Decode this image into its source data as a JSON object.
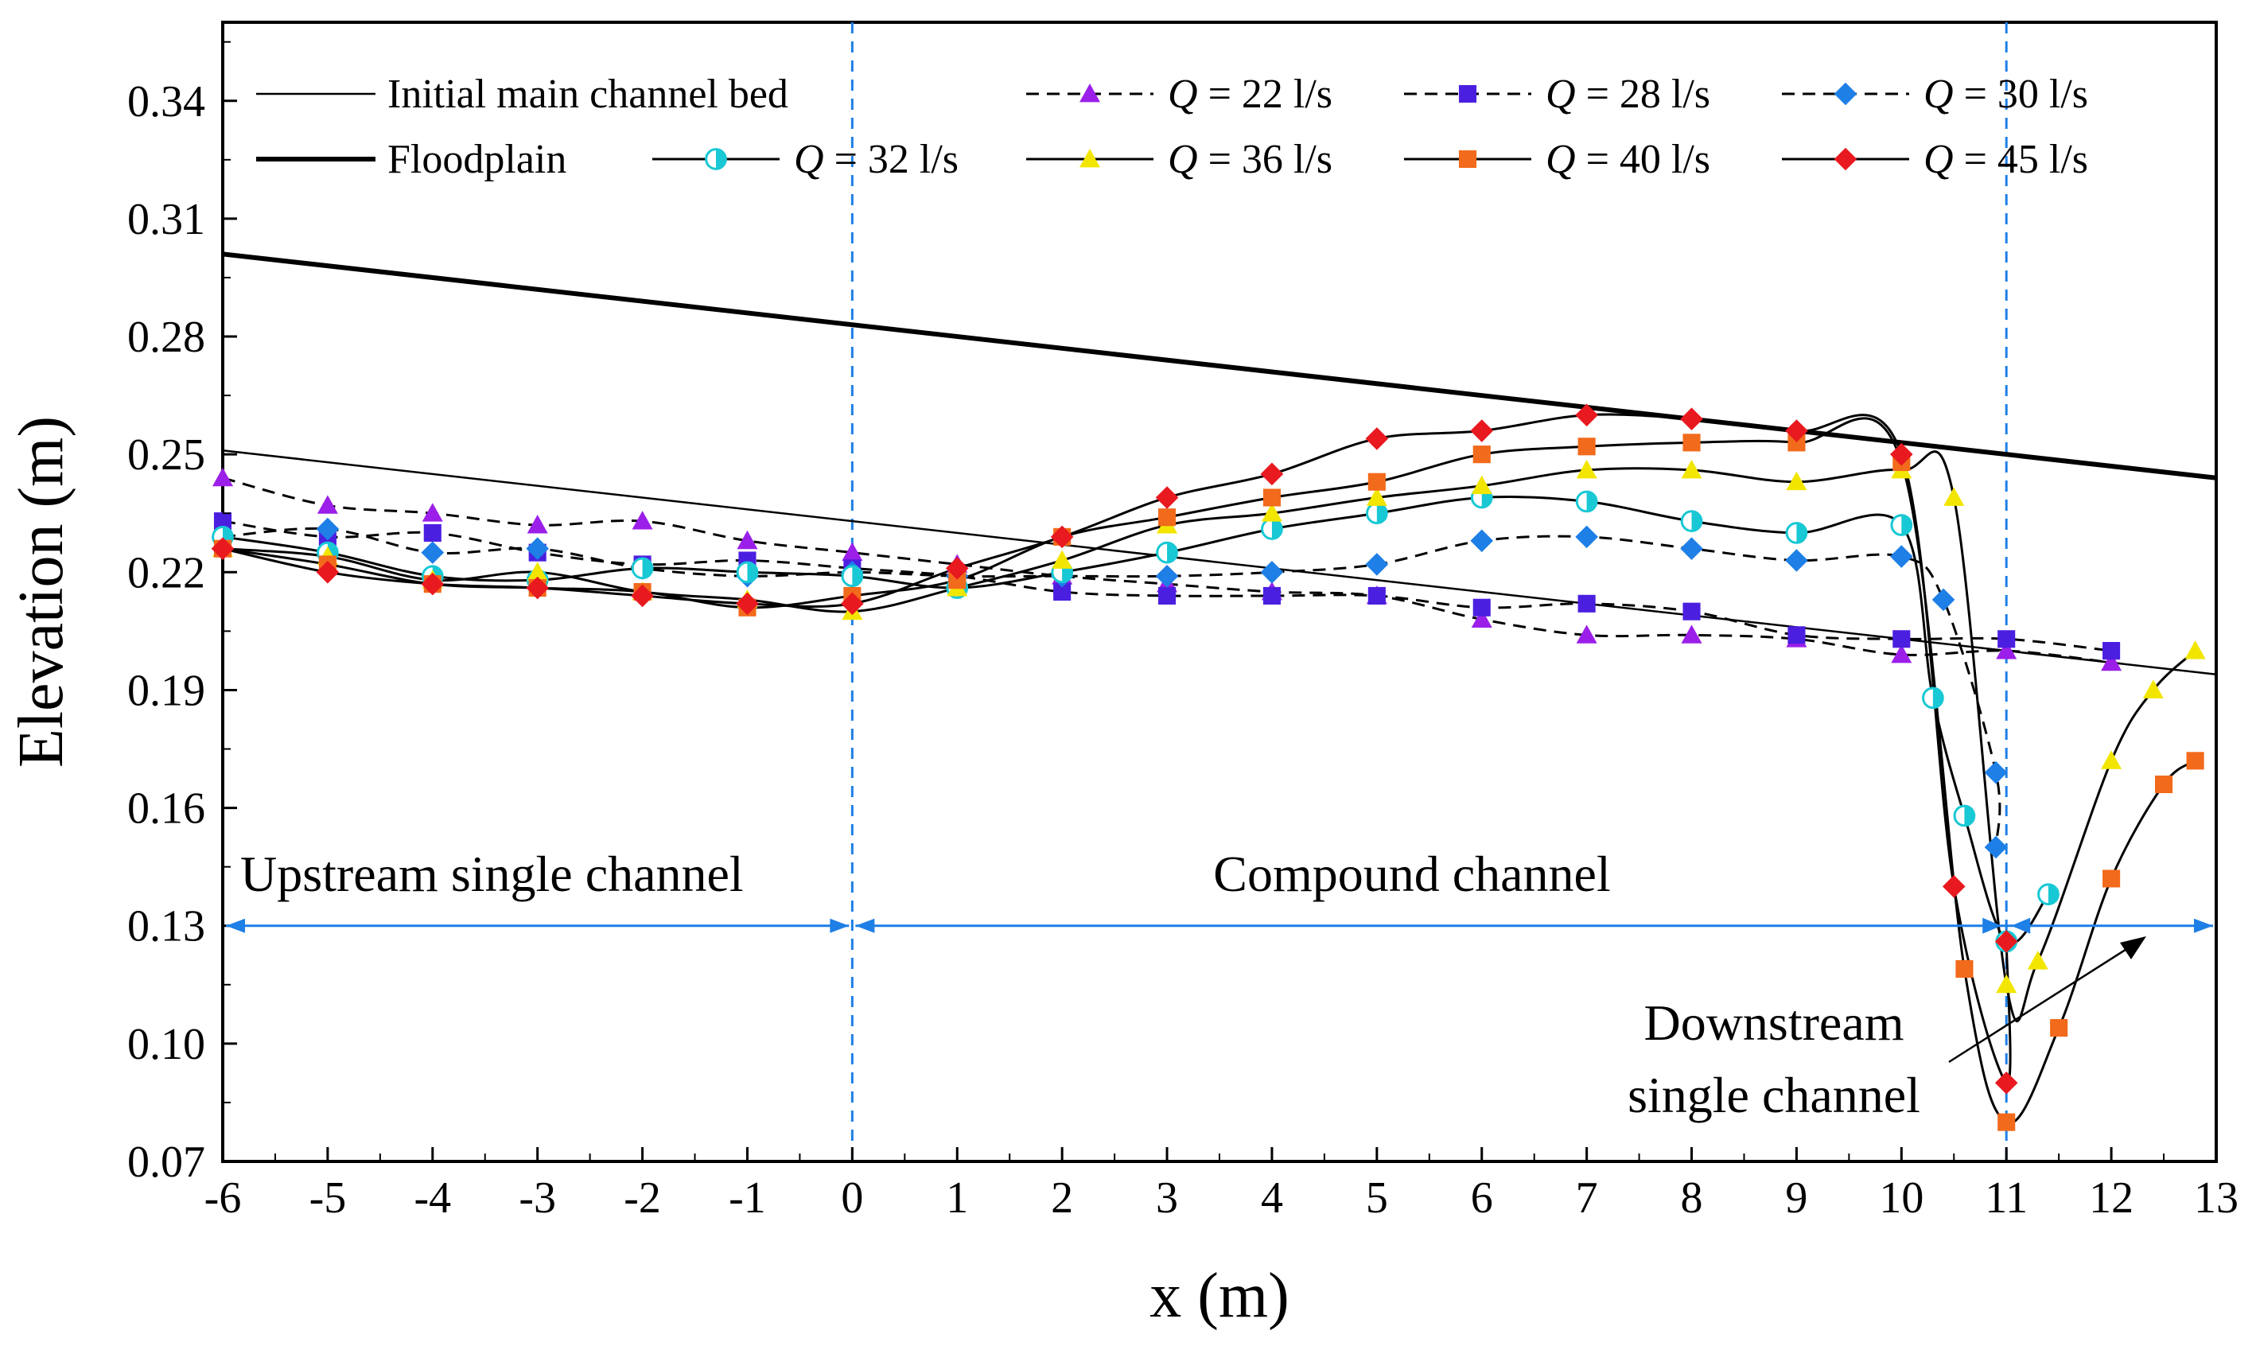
{
  "chart_data": {
    "type": "line",
    "title": "",
    "xlabel": "x (m)",
    "ylabel": "Elevation (m)",
    "xlim": [
      -6,
      13
    ],
    "ylim": [
      0.07,
      0.36
    ],
    "xticks": [
      -6,
      -5,
      -4,
      -3,
      -2,
      -1,
      0,
      1,
      2,
      3,
      4,
      5,
      6,
      7,
      8,
      9,
      10,
      11,
      12,
      13
    ],
    "yticks": [
      0.07,
      0.1,
      0.13,
      0.16,
      0.19,
      0.22,
      0.25,
      0.28,
      0.31,
      0.34
    ],
    "grid": false,
    "legend_position": "top",
    "vertical_lines": [
      0,
      11
    ],
    "annotations": {
      "upstream": "Upstream single channel",
      "compound": "Compound channel",
      "downstream_line1": "Downstream",
      "downstream_line2": "single channel",
      "arrow_y": 0.13
    },
    "reference_lines": [
      {
        "name": "Initial main channel bed",
        "x": [
          -6,
          13
        ],
        "y": [
          0.251,
          0.194
        ],
        "width": "thin"
      },
      {
        "name": "Floodplain",
        "x": [
          -6,
          13
        ],
        "y": [
          0.301,
          0.244
        ],
        "width": "thick"
      }
    ],
    "series": [
      {
        "name": "Q = 22 l/s",
        "q_label": "Q",
        "rest_label": " = 22 l/s",
        "color": "#9B1FE8",
        "marker": "triangle",
        "line": "dashed",
        "x": [
          -6,
          -5,
          -4,
          -3,
          -2,
          -1,
          0,
          1,
          2,
          3,
          4,
          5,
          6,
          7,
          8,
          9,
          10,
          11,
          12
        ],
        "y": [
          0.244,
          0.237,
          0.235,
          0.232,
          0.233,
          0.228,
          0.225,
          0.222,
          0.219,
          0.217,
          0.215,
          0.214,
          0.208,
          0.204,
          0.204,
          0.203,
          0.199,
          0.2,
          0.197
        ]
      },
      {
        "name": "Q = 28 l/s",
        "q_label": "Q",
        "rest_label": " = 28 l/s",
        "color": "#4B1FE0",
        "marker": "square",
        "line": "dashed",
        "x": [
          -6,
          -5,
          -4,
          -3,
          -2,
          -1,
          0,
          1,
          2,
          3,
          4,
          5,
          6,
          7,
          8,
          9,
          10,
          11,
          12
        ],
        "y": [
          0.233,
          0.229,
          0.23,
          0.225,
          0.222,
          0.223,
          0.221,
          0.219,
          0.215,
          0.214,
          0.214,
          0.214,
          0.211,
          0.212,
          0.21,
          0.204,
          0.203,
          0.203,
          0.2
        ]
      },
      {
        "name": "Q = 30 l/s",
        "q_label": "Q",
        "rest_label": " = 30 l/s",
        "color": "#1E7FE6",
        "marker": "diamond",
        "line": "dashed",
        "x": [
          -6,
          -5,
          -4,
          -3,
          -2,
          -1,
          0,
          1,
          2,
          3,
          4,
          5,
          6,
          7,
          8,
          9,
          10,
          10.4,
          10.9,
          10.9
        ],
        "y": [
          0.229,
          0.231,
          0.225,
          0.226,
          0.221,
          0.219,
          0.22,
          0.219,
          0.219,
          0.219,
          0.22,
          0.222,
          0.228,
          0.229,
          0.226,
          0.223,
          0.224,
          0.213,
          0.169,
          0.15
        ]
      },
      {
        "name": "Q = 32 l/s",
        "q_label": "Q",
        "rest_label": " = 32 l/s",
        "color": "#18C8D4",
        "marker": "circle",
        "line": "solid",
        "x": [
          -6,
          -5,
          -4,
          -3,
          -2,
          -1,
          0,
          1,
          2,
          3,
          4,
          5,
          6,
          7,
          8,
          9,
          10,
          10.3,
          10.6,
          11,
          11.4
        ],
        "y": [
          0.229,
          0.225,
          0.219,
          0.218,
          0.221,
          0.22,
          0.219,
          0.216,
          0.22,
          0.225,
          0.231,
          0.235,
          0.239,
          0.238,
          0.233,
          0.23,
          0.232,
          0.188,
          0.158,
          0.126,
          0.138
        ]
      },
      {
        "name": "Q = 36 l/s",
        "q_label": "Q",
        "rest_label": " = 36 l/s",
        "color": "#F2E600",
        "marker": "triangle",
        "line": "solid",
        "x": [
          -6,
          -5,
          -4,
          -3,
          -2,
          -1,
          0,
          1,
          2,
          3,
          4,
          5,
          6,
          7,
          8,
          9,
          10,
          10.5,
          11,
          11.3,
          12,
          12.4,
          12.8
        ],
        "y": [
          0.226,
          0.224,
          0.218,
          0.22,
          0.215,
          0.213,
          0.21,
          0.216,
          0.223,
          0.232,
          0.235,
          0.239,
          0.242,
          0.246,
          0.246,
          0.243,
          0.246,
          0.239,
          0.115,
          0.121,
          0.172,
          0.19,
          0.2
        ]
      },
      {
        "name": "Q = 40 l/s",
        "q_label": "Q",
        "rest_label": " = 40 l/s",
        "color": "#F26A1B",
        "marker": "square",
        "line": "solid",
        "x": [
          -6,
          -5,
          -4,
          -3,
          -2,
          -1,
          0,
          1,
          2,
          3,
          4,
          5,
          6,
          7,
          8,
          9,
          10,
          10.6,
          11,
          11.5,
          12,
          12.5,
          12.8
        ],
        "y": [
          0.226,
          0.222,
          0.217,
          0.216,
          0.215,
          0.211,
          0.214,
          0.218,
          0.229,
          0.234,
          0.239,
          0.243,
          0.25,
          0.252,
          0.253,
          0.253,
          0.248,
          0.119,
          0.08,
          0.104,
          0.142,
          0.166,
          0.172
        ]
      },
      {
        "name": "Q = 45 l/s",
        "q_label": "Q",
        "rest_label": " = 45 l/s",
        "color": "#E8191F",
        "marker": "diamond",
        "line": "solid",
        "x": [
          -6,
          -5,
          -4,
          -3,
          -2,
          -1,
          0,
          1,
          2,
          3,
          4,
          5,
          6,
          7,
          8,
          9,
          10,
          10.5,
          11,
          11
        ],
        "y": [
          0.226,
          0.22,
          0.217,
          0.216,
          0.214,
          0.212,
          0.212,
          0.221,
          0.229,
          0.239,
          0.245,
          0.254,
          0.256,
          0.26,
          0.259,
          0.256,
          0.25,
          0.14,
          0.09,
          0.126
        ]
      }
    ]
  }
}
